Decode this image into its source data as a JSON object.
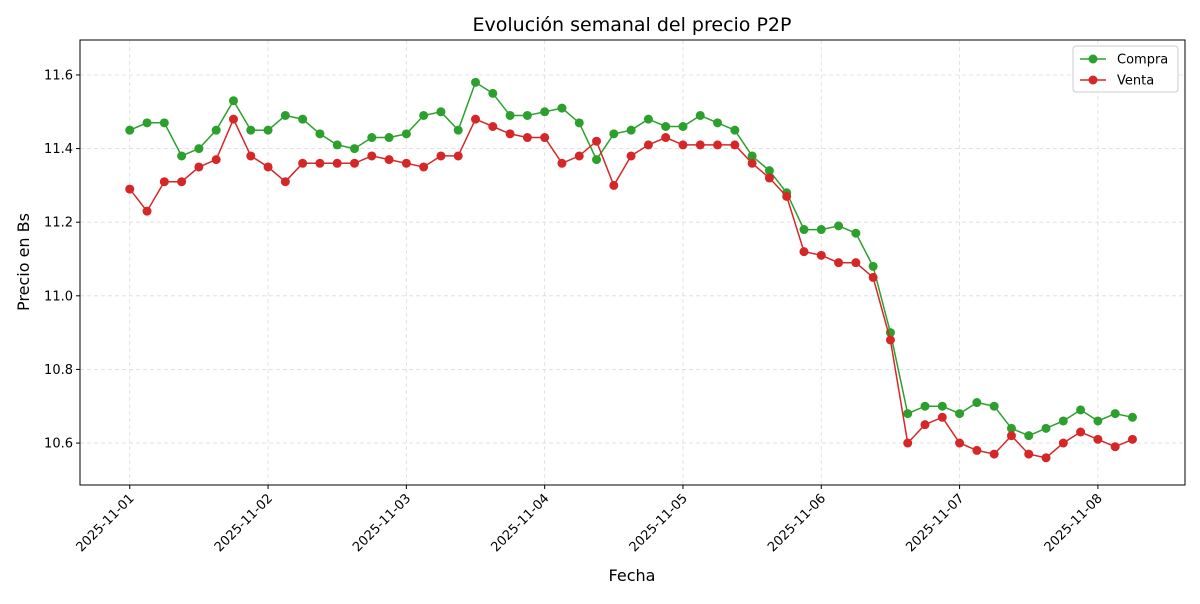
{
  "chart_data": {
    "type": "line",
    "title": "Evolución semanal del precio P2P",
    "xlabel": "Fecha",
    "ylabel": "Precio en Bs",
    "xlim": [
      "2025-10-31T15:22",
      "2025-11-08T15:07"
    ],
    "ylim": [
      10.486,
      11.695
    ],
    "xticks": [
      "2025-11-01",
      "2025-11-02",
      "2025-11-03",
      "2025-11-04",
      "2025-11-05",
      "2025-11-06",
      "2025-11-07",
      "2025-11-08"
    ],
    "yticks": [
      10.6,
      10.8,
      11.0,
      11.2,
      11.4,
      11.6
    ],
    "grid": true,
    "legend_position": "top-right",
    "x": [
      "2025-11-01T00:00",
      "2025-11-01T03:00",
      "2025-11-01T06:00",
      "2025-11-01T09:00",
      "2025-11-01T12:00",
      "2025-11-01T15:00",
      "2025-11-01T18:00",
      "2025-11-01T21:00",
      "2025-11-02T00:00",
      "2025-11-02T03:00",
      "2025-11-02T06:00",
      "2025-11-02T09:00",
      "2025-11-02T12:00",
      "2025-11-02T15:00",
      "2025-11-02T18:00",
      "2025-11-02T21:00",
      "2025-11-03T00:00",
      "2025-11-03T03:00",
      "2025-11-03T06:00",
      "2025-11-03T09:00",
      "2025-11-03T12:00",
      "2025-11-03T15:00",
      "2025-11-03T18:00",
      "2025-11-03T21:00",
      "2025-11-04T00:00",
      "2025-11-04T03:00",
      "2025-11-04T06:00",
      "2025-11-04T09:00",
      "2025-11-04T12:00",
      "2025-11-04T15:00",
      "2025-11-04T18:00",
      "2025-11-04T21:00",
      "2025-11-05T00:00",
      "2025-11-05T03:00",
      "2025-11-05T06:00",
      "2025-11-05T09:00",
      "2025-11-05T12:00",
      "2025-11-05T15:00",
      "2025-11-05T18:00",
      "2025-11-05T21:00",
      "2025-11-06T00:00",
      "2025-11-06T03:00",
      "2025-11-06T06:00",
      "2025-11-06T09:00",
      "2025-11-06T12:00",
      "2025-11-06T15:00",
      "2025-11-06T18:00",
      "2025-11-06T21:00",
      "2025-11-07T00:00",
      "2025-11-07T03:00",
      "2025-11-07T06:00",
      "2025-11-07T09:00",
      "2025-11-07T12:00",
      "2025-11-07T15:00",
      "2025-11-07T18:00",
      "2025-11-07T21:00",
      "2025-11-08T00:00",
      "2025-11-08T03:00",
      "2025-11-08T06:00"
    ],
    "series": [
      {
        "name": "Compra",
        "color": "#2ca02c",
        "marker": "circle",
        "values": [
          11.45,
          11.47,
          11.47,
          11.38,
          11.4,
          11.45,
          11.53,
          11.45,
          11.45,
          11.49,
          11.48,
          11.44,
          11.41,
          11.4,
          11.43,
          11.43,
          11.44,
          11.49,
          11.5,
          11.45,
          11.58,
          11.55,
          11.49,
          11.49,
          11.5,
          11.51,
          11.47,
          11.37,
          11.44,
          11.45,
          11.48,
          11.46,
          11.46,
          11.49,
          11.47,
          11.45,
          11.38,
          11.34,
          11.28,
          11.18,
          11.18,
          11.19,
          11.17,
          11.08,
          10.9,
          10.68,
          10.7,
          10.7,
          10.68,
          10.71,
          10.7,
          10.64,
          10.62,
          10.64,
          10.66,
          10.69,
          10.66,
          10.68,
          10.67
        ]
      },
      {
        "name": "Venta",
        "color": "#d62728",
        "marker": "circle",
        "values": [
          11.29,
          11.23,
          11.31,
          11.31,
          11.35,
          11.37,
          11.48,
          11.38,
          11.35,
          11.31,
          11.36,
          11.36,
          11.36,
          11.36,
          11.38,
          11.37,
          11.36,
          11.35,
          11.38,
          11.38,
          11.48,
          11.46,
          11.44,
          11.43,
          11.43,
          11.36,
          11.38,
          11.42,
          11.3,
          11.38,
          11.41,
          11.43,
          11.41,
          11.41,
          11.41,
          11.41,
          11.36,
          11.32,
          11.27,
          11.12,
          11.11,
          11.09,
          11.09,
          11.05,
          10.88,
          10.6,
          10.65,
          10.67,
          10.6,
          10.58,
          10.57,
          10.62,
          10.57,
          10.56,
          10.6,
          10.63,
          10.61,
          10.59,
          10.61
        ]
      }
    ]
  }
}
